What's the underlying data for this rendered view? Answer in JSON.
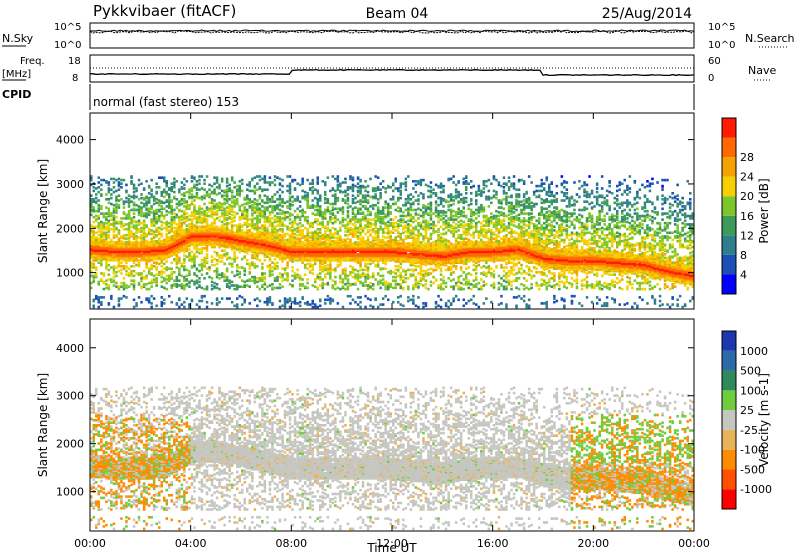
{
  "header": {
    "station": "Pykkvibaer (fitACF)",
    "beam": "Beam 04",
    "date": "25/Aug/2014",
    "cpid_mode": "normal (fast stereo) 153"
  },
  "panels": {
    "nsky": {
      "left_label": "N.Sky",
      "left_ticks": [
        "10^5",
        "10^0"
      ],
      "right_label": "N.Search",
      "right_ticks": [
        "10^5",
        "10^0"
      ]
    },
    "freq": {
      "left_label_1": "Freq.",
      "left_label_2": "[MHz]",
      "left_ticks": [
        "18",
        "8"
      ],
      "right_label": "Nave",
      "right_ticks": [
        "60",
        "0"
      ]
    },
    "cpid": {
      "label": "CPID"
    }
  },
  "colors": {
    "power_scale": [
      "#0000ff",
      "#1a4fb5",
      "#2e7e8e",
      "#3c9a5a",
      "#7cc62a",
      "#f5d000",
      "#f5a300",
      "#ff6a00",
      "#ff1a00"
    ],
    "velocity_scale": [
      "#1c37b0",
      "#2a6aa6",
      "#2f8a5a",
      "#6fcc40",
      "#c6c6c0",
      "#e8b45a",
      "#ff8c00",
      "#ff5000",
      "#ff0000"
    ]
  },
  "chart_data": [
    {
      "type": "heatmap",
      "title": "",
      "xlabel": "Time UT",
      "ylabel": "Slant Range [km]",
      "x_ticks": [
        "00:00",
        "04:00",
        "08:00",
        "12:00",
        "16:00",
        "20:00",
        "00:00"
      ],
      "y_ticks": [
        1000,
        2000,
        3000,
        4000
      ],
      "xlim_hours": [
        0,
        24
      ],
      "ylim_km": [
        180,
        4600
      ],
      "colorbar": {
        "label": "Power [dB]",
        "ticks": [
          4,
          8,
          12,
          16,
          20,
          24,
          28
        ],
        "range": [
          0,
          30
        ]
      },
      "band_profile": {
        "hours": [
          0,
          1,
          2,
          3,
          4,
          5,
          6,
          7,
          8,
          9,
          10,
          11,
          12,
          13,
          14,
          15,
          16,
          17,
          18,
          19,
          20,
          21,
          22,
          23,
          24
        ],
        "center_km": [
          1500,
          1450,
          1450,
          1500,
          1800,
          1800,
          1700,
          1600,
          1450,
          1450,
          1450,
          1450,
          1450,
          1400,
          1350,
          1450,
          1450,
          1500,
          1300,
          1250,
          1250,
          1200,
          1150,
          1000,
          900
        ]
      }
    },
    {
      "type": "heatmap",
      "title": "",
      "xlabel": "Time UT",
      "ylabel": "Slant Range [km]",
      "x_ticks": [
        "00:00",
        "04:00",
        "08:00",
        "12:00",
        "16:00",
        "20:00",
        "00:00"
      ],
      "y_ticks": [
        1000,
        2000,
        3000,
        4000
      ],
      "xlim_hours": [
        0,
        24
      ],
      "ylim_km": [
        180,
        4600
      ],
      "colorbar": {
        "label": "Velocity [m s-1]",
        "ticks": [
          "1000",
          "500",
          "100",
          "25",
          "-25",
          "-100",
          "-500",
          "-1000"
        ]
      },
      "band_profile": {
        "hours": [
          0,
          1,
          2,
          3,
          4,
          5,
          6,
          7,
          8,
          9,
          10,
          11,
          12,
          13,
          14,
          15,
          16,
          17,
          18,
          19,
          20,
          21,
          22,
          23,
          24
        ],
        "center_km": [
          1500,
          1450,
          1450,
          1500,
          1800,
          1800,
          1700,
          1600,
          1450,
          1450,
          1450,
          1450,
          1450,
          1400,
          1350,
          1450,
          1450,
          1500,
          1300,
          1250,
          1250,
          1200,
          1150,
          1000,
          900
        ]
      }
    }
  ]
}
